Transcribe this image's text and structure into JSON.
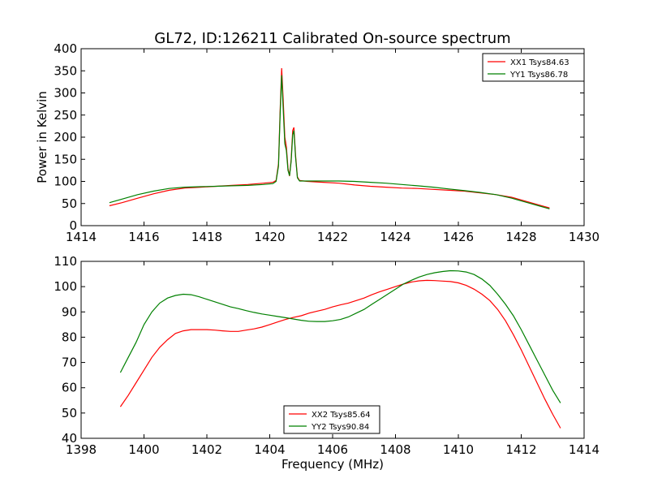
{
  "figure_title": "GL72, ID:126211 Calibrated On-source spectrum",
  "chart_data": [
    {
      "type": "line",
      "title": "GL72, ID:126211 Calibrated On-source spectrum",
      "xlabel": "",
      "ylabel": "Power in Kelvin",
      "xlim": [
        1414,
        1430
      ],
      "ylim": [
        0,
        400
      ],
      "xticks": [
        1414,
        1416,
        1418,
        1420,
        1422,
        1424,
        1426,
        1428,
        1430
      ],
      "yticks": [
        0,
        50,
        100,
        150,
        200,
        250,
        300,
        350,
        400
      ],
      "grid": false,
      "legend_position": "top-right",
      "series": [
        {
          "name": "XX1 Tsys84.63",
          "color": "#ff0000",
          "points": [
            [
              1414.9,
              45
            ],
            [
              1415.3,
              52
            ],
            [
              1415.8,
              62
            ],
            [
              1416.3,
              72
            ],
            [
              1416.8,
              80
            ],
            [
              1417.3,
              85
            ],
            [
              1417.8,
              87
            ],
            [
              1418.3,
              89
            ],
            [
              1418.8,
              91
            ],
            [
              1419.3,
              93
            ],
            [
              1419.8,
              96
            ],
            [
              1420.1,
              98
            ],
            [
              1420.2,
              102
            ],
            [
              1420.28,
              140
            ],
            [
              1420.33,
              260
            ],
            [
              1420.38,
              356
            ],
            [
              1420.43,
              280
            ],
            [
              1420.48,
              200
            ],
            [
              1420.53,
              178
            ],
            [
              1420.58,
              130
            ],
            [
              1420.63,
              112
            ],
            [
              1420.68,
              150
            ],
            [
              1420.73,
              215
            ],
            [
              1420.77,
              222
            ],
            [
              1420.82,
              160
            ],
            [
              1420.88,
              110
            ],
            [
              1420.95,
              102
            ],
            [
              1421.2,
              100
            ],
            [
              1421.7,
              98
            ],
            [
              1422.2,
              96
            ],
            [
              1422.7,
              92
            ],
            [
              1423.2,
              89
            ],
            [
              1423.7,
              87
            ],
            [
              1424.2,
              85
            ],
            [
              1424.7,
              84
            ],
            [
              1425.2,
              82
            ],
            [
              1425.7,
              80
            ],
            [
              1426.2,
              78
            ],
            [
              1426.7,
              74
            ],
            [
              1427.2,
              70
            ],
            [
              1427.7,
              64
            ],
            [
              1428.2,
              54
            ],
            [
              1428.6,
              46
            ],
            [
              1428.9,
              40
            ]
          ]
        },
        {
          "name": "YY1 Tsys86.78",
          "color": "#008000",
          "points": [
            [
              1414.9,
              52
            ],
            [
              1415.3,
              60
            ],
            [
              1415.8,
              70
            ],
            [
              1416.3,
              78
            ],
            [
              1416.8,
              84
            ],
            [
              1417.3,
              87
            ],
            [
              1417.8,
              88
            ],
            [
              1418.3,
              89
            ],
            [
              1418.8,
              90
            ],
            [
              1419.3,
              91
            ],
            [
              1419.8,
              93
            ],
            [
              1420.1,
              95
            ],
            [
              1420.2,
              100
            ],
            [
              1420.28,
              135
            ],
            [
              1420.33,
              250
            ],
            [
              1420.38,
              340
            ],
            [
              1420.43,
              260
            ],
            [
              1420.48,
              185
            ],
            [
              1420.53,
              170
            ],
            [
              1420.58,
              125
            ],
            [
              1420.63,
              113
            ],
            [
              1420.68,
              145
            ],
            [
              1420.73,
              205
            ],
            [
              1420.77,
              215
            ],
            [
              1420.82,
              155
            ],
            [
              1420.88,
              108
            ],
            [
              1420.95,
              101
            ],
            [
              1421.2,
              101
            ],
            [
              1421.7,
              101
            ],
            [
              1422.2,
              101
            ],
            [
              1422.7,
              100
            ],
            [
              1423.2,
              98
            ],
            [
              1423.7,
              96
            ],
            [
              1424.2,
              93
            ],
            [
              1424.7,
              90
            ],
            [
              1425.2,
              87
            ],
            [
              1425.7,
              83
            ],
            [
              1426.2,
              79
            ],
            [
              1426.7,
              75
            ],
            [
              1427.2,
              70
            ],
            [
              1427.7,
              62
            ],
            [
              1428.2,
              52
            ],
            [
              1428.6,
              44
            ],
            [
              1428.9,
              38
            ]
          ]
        }
      ]
    },
    {
      "type": "line",
      "title": "",
      "xlabel": "Frequency (MHz)",
      "ylabel": "",
      "xlim": [
        1398,
        1414
      ],
      "ylim": [
        40,
        110
      ],
      "xticks": [
        1398,
        1400,
        1402,
        1404,
        1406,
        1408,
        1410,
        1412,
        1414
      ],
      "yticks": [
        40,
        50,
        60,
        70,
        80,
        90,
        100,
        110
      ],
      "grid": false,
      "legend_position": "bottom-center",
      "series": [
        {
          "name": "XX2 Tsys85.64",
          "color": "#ff0000",
          "points": [
            [
              1399.25,
              52.5
            ],
            [
              1399.5,
              57
            ],
            [
              1399.75,
              62
            ],
            [
              1400.0,
              67
            ],
            [
              1400.25,
              72
            ],
            [
              1400.5,
              76
            ],
            [
              1400.75,
              79
            ],
            [
              1401.0,
              81.5
            ],
            [
              1401.25,
              82.5
            ],
            [
              1401.5,
              83
            ],
            [
              1401.75,
              83
            ],
            [
              1402.0,
              83
            ],
            [
              1402.25,
              82.8
            ],
            [
              1402.5,
              82.5
            ],
            [
              1402.75,
              82.3
            ],
            [
              1403.0,
              82.3
            ],
            [
              1403.25,
              82.8
            ],
            [
              1403.5,
              83.3
            ],
            [
              1403.75,
              84
            ],
            [
              1404.0,
              85
            ],
            [
              1404.25,
              86
            ],
            [
              1404.5,
              87
            ],
            [
              1404.75,
              87.8
            ],
            [
              1405.0,
              88.5
            ],
            [
              1405.25,
              89.5
            ],
            [
              1405.5,
              90.3
            ],
            [
              1405.75,
              91
            ],
            [
              1406.0,
              92
            ],
            [
              1406.25,
              92.8
            ],
            [
              1406.5,
              93.5
            ],
            [
              1406.75,
              94.5
            ],
            [
              1407.0,
              95.5
            ],
            [
              1407.25,
              96.8
            ],
            [
              1407.5,
              98
            ],
            [
              1407.75,
              99
            ],
            [
              1408.0,
              100
            ],
            [
              1408.25,
              101
            ],
            [
              1408.5,
              101.8
            ],
            [
              1408.75,
              102.3
            ],
            [
              1409.0,
              102.5
            ],
            [
              1409.25,
              102.4
            ],
            [
              1409.5,
              102.2
            ],
            [
              1409.75,
              102
            ],
            [
              1410.0,
              101.5
            ],
            [
              1410.25,
              100.5
            ],
            [
              1410.5,
              99
            ],
            [
              1410.75,
              97
            ],
            [
              1411.0,
              94.5
            ],
            [
              1411.25,
              91
            ],
            [
              1411.5,
              86.5
            ],
            [
              1411.75,
              81
            ],
            [
              1412.0,
              75
            ],
            [
              1412.25,
              68.5
            ],
            [
              1412.5,
              62
            ],
            [
              1412.75,
              55.5
            ],
            [
              1413.0,
              49.5
            ],
            [
              1413.25,
              44
            ]
          ]
        },
        {
          "name": "YY2 Tsys90.84",
          "color": "#008000",
          "points": [
            [
              1399.25,
              66
            ],
            [
              1399.5,
              72
            ],
            [
              1399.75,
              78
            ],
            [
              1400.0,
              85
            ],
            [
              1400.25,
              90
            ],
            [
              1400.5,
              93.5
            ],
            [
              1400.75,
              95.5
            ],
            [
              1401.0,
              96.5
            ],
            [
              1401.25,
              97
            ],
            [
              1401.5,
              96.8
            ],
            [
              1401.75,
              96
            ],
            [
              1402.0,
              95
            ],
            [
              1402.25,
              94
            ],
            [
              1402.5,
              93
            ],
            [
              1402.75,
              92
            ],
            [
              1403.0,
              91.3
            ],
            [
              1403.25,
              90.5
            ],
            [
              1403.5,
              89.8
            ],
            [
              1403.75,
              89.2
            ],
            [
              1404.0,
              88.7
            ],
            [
              1404.25,
              88.2
            ],
            [
              1404.5,
              87.7
            ],
            [
              1404.75,
              87.2
            ],
            [
              1405.0,
              86.7
            ],
            [
              1405.25,
              86.3
            ],
            [
              1405.5,
              86.2
            ],
            [
              1405.75,
              86.2
            ],
            [
              1406.0,
              86.5
            ],
            [
              1406.25,
              87
            ],
            [
              1406.5,
              88
            ],
            [
              1406.75,
              89.5
            ],
            [
              1407.0,
              91
            ],
            [
              1407.25,
              93
            ],
            [
              1407.5,
              95
            ],
            [
              1407.75,
              97
            ],
            [
              1408.0,
              99
            ],
            [
              1408.25,
              101
            ],
            [
              1408.5,
              102.5
            ],
            [
              1408.75,
              103.8
            ],
            [
              1409.0,
              104.8
            ],
            [
              1409.25,
              105.5
            ],
            [
              1409.5,
              106
            ],
            [
              1409.75,
              106.3
            ],
            [
              1410.0,
              106.2
            ],
            [
              1410.25,
              105.8
            ],
            [
              1410.5,
              104.8
            ],
            [
              1410.75,
              103
            ],
            [
              1411.0,
              100.5
            ],
            [
              1411.25,
              97
            ],
            [
              1411.5,
              93
            ],
            [
              1411.75,
              88.5
            ],
            [
              1412.0,
              83
            ],
            [
              1412.25,
              77
            ],
            [
              1412.5,
              71
            ],
            [
              1412.75,
              65
            ],
            [
              1413.0,
              59
            ],
            [
              1413.25,
              54
            ]
          ]
        }
      ]
    }
  ]
}
